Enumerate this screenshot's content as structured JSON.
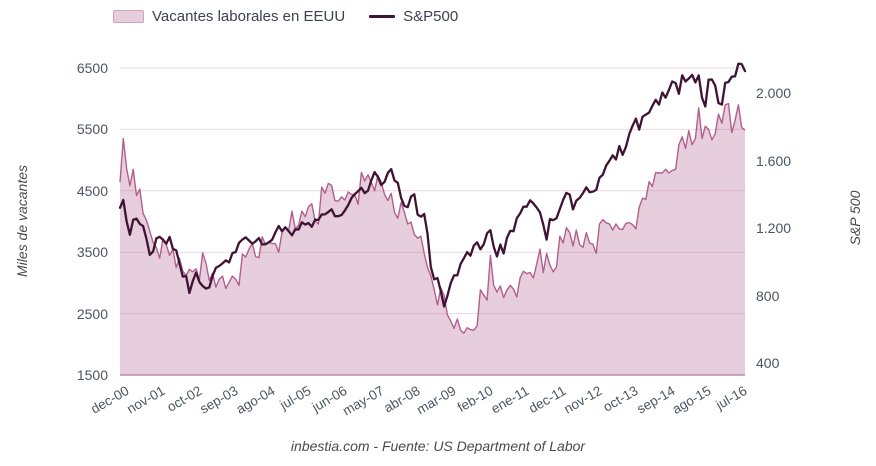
{
  "footer": {
    "text": "inbestia.com - Fuente: US Department of Labor"
  },
  "chart_data": {
    "type": "mixed",
    "subtype": "area+line, dual y-axis",
    "x": {
      "frequency": "monthly",
      "start": "dec-00",
      "end": "sep-16",
      "tick_labels": [
        "dec-00",
        "nov-01",
        "oct-02",
        "sep-03",
        "ago-04",
        "jul-05",
        "jun-06",
        "may-07",
        "abr-08",
        "mar-09",
        "feb-10",
        "ene-11",
        "dec-11",
        "nov-12",
        "oct-13",
        "sep-14",
        "ago-15",
        "jul-16"
      ],
      "tick_month_indices": [
        0,
        11,
        22,
        33,
        44,
        55,
        66,
        77,
        88,
        99,
        110,
        121,
        132,
        143,
        154,
        165,
        176,
        187
      ]
    },
    "left_axis": {
      "title": "Miles de vacantes",
      "tick_labels": [
        "6500",
        "5500",
        "4500",
        "3500",
        "2500",
        "1500"
      ],
      "tick_values": [
        6500,
        5500,
        4500,
        3500,
        2500,
        1500
      ],
      "min": 1500,
      "max": 6500,
      "grid": true
    },
    "right_axis": {
      "title": "S&P 500",
      "tick_labels": [
        "2.000",
        "1.600",
        "1.200",
        "800",
        "400"
      ],
      "tick_values": [
        2000,
        1600,
        1200,
        800,
        400
      ],
      "min": 400,
      "max": 2000,
      "grid": false
    },
    "colors": {
      "area_fill": "#e7cedc",
      "area_stroke": "#b25f8d",
      "line": "#3e1333",
      "grid": "rgba(178,95,141,0.25)",
      "tick_text": "#4b5563"
    },
    "legend_position": "top-left",
    "series": [
      {
        "name": "Vacantes laborales en EEUU",
        "type": "area",
        "axis": "left",
        "values": [
          4640,
          5350,
          4870,
          4580,
          4850,
          4420,
          4530,
          4130,
          4020,
          3840,
          3660,
          3570,
          3400,
          3720,
          3620,
          3450,
          3550,
          3250,
          3400,
          3190,
          3120,
          3220,
          3180,
          3230,
          3050,
          3490,
          3320,
          3040,
          3160,
          2930,
          3060,
          3110,
          2910,
          3010,
          3110,
          3060,
          2960,
          3470,
          3420,
          3550,
          3640,
          3430,
          3410,
          3750,
          3620,
          3660,
          3640,
          3640,
          3500,
          3820,
          3910,
          3860,
          4170,
          3880,
          3940,
          4170,
          4080,
          4240,
          4290,
          4010,
          3960,
          4560,
          4460,
          4620,
          4590,
          4340,
          4330,
          4400,
          4350,
          4480,
          4440,
          4440,
          4280,
          4800,
          4660,
          4760,
          4640,
          4500,
          4750,
          4640,
          4440,
          4340,
          4460,
          4150,
          4050,
          4310,
          4150,
          3960,
          3990,
          3790,
          3730,
          3760,
          3480,
          3250,
          3120,
          2890,
          2640,
          2920,
          2790,
          2480,
          2380,
          2260,
          2410,
          2230,
          2180,
          2270,
          2240,
          2230,
          2300,
          2890,
          2800,
          2720,
          3450,
          2960,
          2850,
          2950,
          2760,
          2880,
          2960,
          2900,
          2770,
          3080,
          3190,
          3150,
          3170,
          3080,
          3310,
          3550,
          3170,
          3480,
          3290,
          3180,
          3260,
          3760,
          3650,
          3900,
          3820,
          3600,
          3860,
          3620,
          3580,
          3820,
          3650,
          3630,
          3480,
          3960,
          4030,
          3980,
          3960,
          3860,
          3960,
          3880,
          3870,
          3970,
          3980,
          3950,
          3880,
          4230,
          4380,
          4360,
          4650,
          4570,
          4800,
          4790,
          4790,
          4850,
          4790,
          4830,
          4850,
          5250,
          5380,
          5190,
          5480,
          5250,
          5350,
          5850,
          5350,
          5550,
          5500,
          5330,
          5430,
          5750,
          5600,
          5900,
          5920,
          5450,
          5650,
          5900,
          5530,
          5490
        ]
      },
      {
        "name": "S&P500",
        "type": "line",
        "axis": "right",
        "values": [
          1320,
          1366,
          1240,
          1160,
          1249,
          1256,
          1224,
          1211,
          1134,
          1041,
          1060,
          1139,
          1148,
          1130,
          1107,
          1147,
          1077,
          1067,
          990,
          912,
          916,
          815,
          886,
          936,
          880,
          856,
          841,
          848,
          917,
          964,
          975,
          990,
          1008,
          996,
          1051,
          1058,
          1112,
          1131,
          1145,
          1126,
          1107,
          1121,
          1141,
          1102,
          1104,
          1115,
          1130,
          1174,
          1212,
          1181,
          1204,
          1181,
          1157,
          1192,
          1191,
          1234,
          1220,
          1229,
          1207,
          1249,
          1248,
          1280,
          1281,
          1295,
          1311,
          1270,
          1270,
          1277,
          1304,
          1336,
          1378,
          1401,
          1418,
          1438,
          1407,
          1421,
          1482,
          1531,
          1503,
          1455,
          1474,
          1527,
          1549,
          1481,
          1468,
          1379,
          1331,
          1323,
          1386,
          1400,
          1280,
          1267,
          1283,
          1166,
          969,
          896,
          903,
          826,
          735,
          798,
          873,
          919,
          919,
          987,
          1021,
          1057,
          1036,
          1096,
          1115,
          1074,
          1104,
          1169,
          1187,
          1089,
          1031,
          1102,
          1049,
          1141,
          1183,
          1181,
          1258,
          1286,
          1327,
          1326,
          1364,
          1345,
          1321,
          1292,
          1219,
          1131,
          1253,
          1247,
          1258,
          1312,
          1366,
          1408,
          1398,
          1310,
          1362,
          1379,
          1407,
          1441,
          1412,
          1416,
          1426,
          1498,
          1515,
          1569,
          1598,
          1631,
          1606,
          1686,
          1633,
          1682,
          1757,
          1806,
          1848,
          1783,
          1859,
          1872,
          1884,
          1924,
          1960,
          1931,
          2003,
          1972,
          2018,
          2068,
          2059,
          1995,
          2105,
          2068,
          2086,
          2107,
          2063,
          2104,
          1972,
          1920,
          2079,
          2080,
          2044,
          1940,
          1932,
          2060,
          2065,
          2097,
          2099,
          2174,
          2171,
          2130
        ]
      }
    ]
  }
}
